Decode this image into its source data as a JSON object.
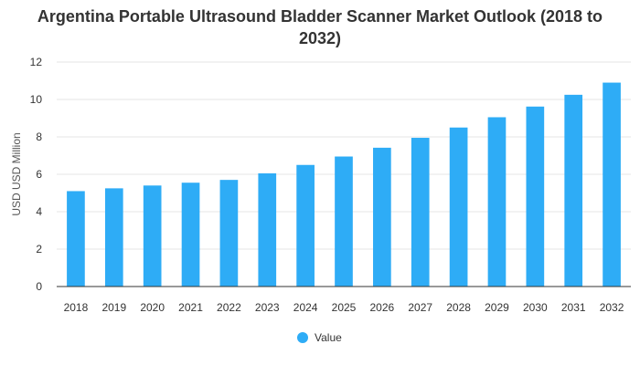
{
  "chart_data": {
    "type": "bar",
    "title": "Argentina Portable Ultrasound Bladder Scanner Market Outlook (2018 to 2032)",
    "xlabel": "",
    "ylabel": "USD USD Million",
    "ylim": [
      0,
      12
    ],
    "yticks": [
      0,
      2,
      4,
      6,
      8,
      10,
      12
    ],
    "grid": true,
    "legend_position": "bottom",
    "categories": [
      "2018",
      "2019",
      "2020",
      "2021",
      "2022",
      "2023",
      "2024",
      "2025",
      "2026",
      "2027",
      "2028",
      "2029",
      "2030",
      "2031",
      "2032"
    ],
    "series": [
      {
        "name": "Value",
        "color": "#2eacf6",
        "values": [
          5.1,
          5.25,
          5.4,
          5.55,
          5.7,
          6.05,
          6.5,
          6.95,
          7.42,
          7.95,
          8.5,
          9.05,
          9.62,
          10.25,
          10.9
        ]
      }
    ]
  }
}
